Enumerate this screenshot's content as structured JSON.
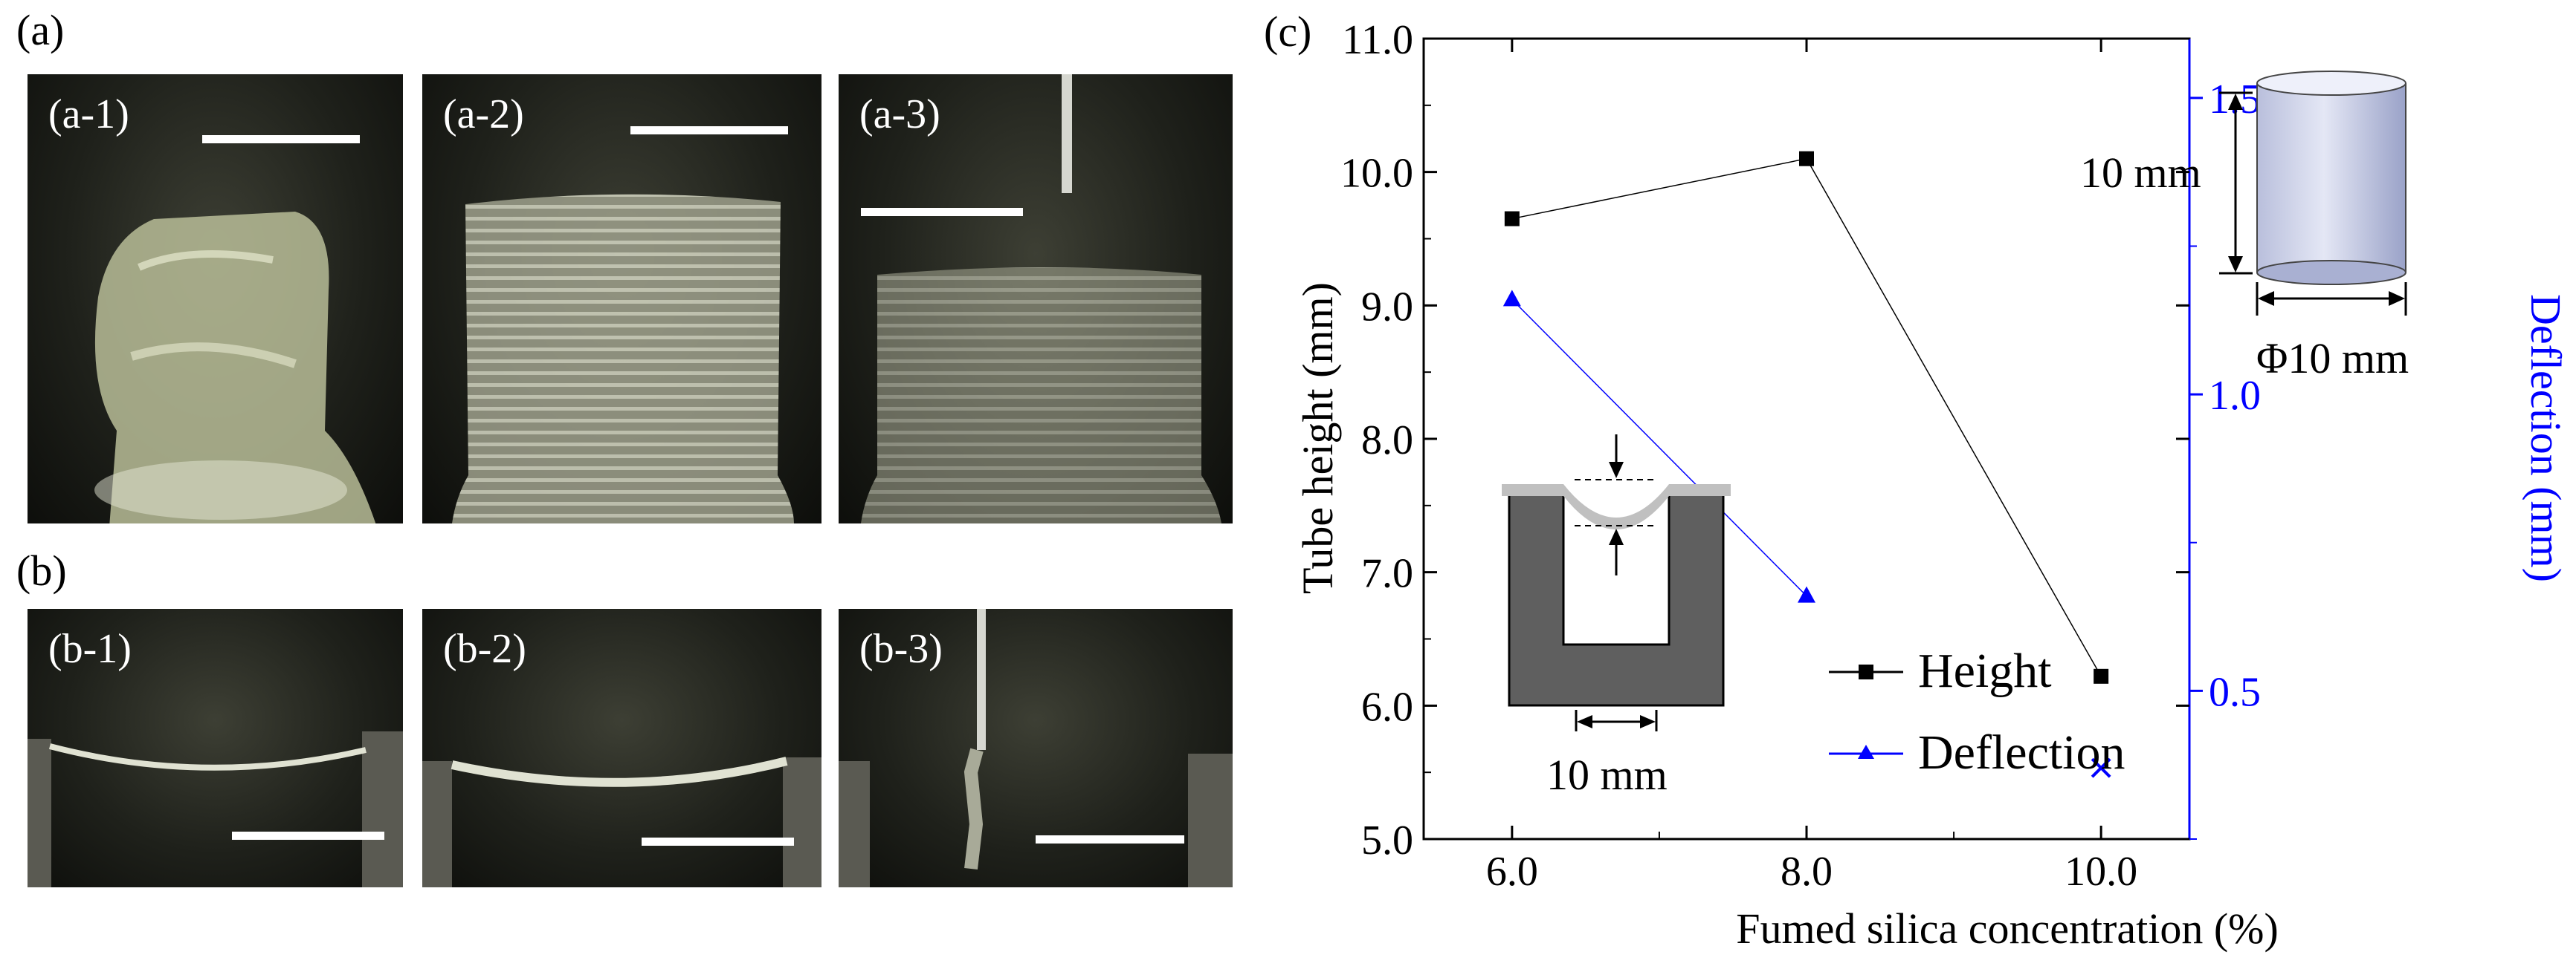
{
  "panels": {
    "a": "(a)",
    "b": "(b)",
    "c": "(c)",
    "a_sub": [
      "(a-1)",
      "(a-2)",
      "(a-3)"
    ],
    "b_sub": [
      "(b-1)",
      "(b-2)",
      "(b-3)"
    ]
  },
  "chart_data": {
    "type": "line",
    "title": "",
    "xlabel": "Fumed silica concentration (%)",
    "ylabel": "Tube height (mm)",
    "y2label": "Deflection (mm)",
    "xlim": [
      5.4,
      10.6
    ],
    "ylim": [
      5.0,
      11.0
    ],
    "y2lim": [
      0.25,
      1.6
    ],
    "x_ticks": [
      "6.0",
      "8.0",
      "10.0"
    ],
    "y_ticks": [
      "5.0",
      "6.0",
      "7.0",
      "8.0",
      "9.0",
      "10.0",
      "11.0"
    ],
    "y2_ticks": [
      "0.5",
      "1.0",
      "1.5"
    ],
    "legend_position": "bottom-center",
    "series": [
      {
        "name": "Height",
        "axis": "left",
        "marker": "square",
        "color": "#000000",
        "x": [
          6.0,
          8.0,
          10.0
        ],
        "y": [
          9.65,
          10.1,
          6.22
        ]
      },
      {
        "name": "Deflection",
        "axis": "right",
        "marker": "triangle",
        "color": "#0000ff",
        "x": [
          6.0,
          8.0
        ],
        "y": [
          1.16,
          0.66
        ]
      }
    ],
    "extra_marker": {
      "marker": "x",
      "color": "#0000ff",
      "x": 10.0,
      "y2": 0.37
    },
    "annotations": {
      "cylinder_height": "10 mm",
      "cylinder_diameter": "Φ10 mm",
      "channel_width": "10 mm"
    }
  },
  "colors": {
    "height": "#000000",
    "deflection": "#0000ff",
    "photo_bg": "#1f211b"
  }
}
